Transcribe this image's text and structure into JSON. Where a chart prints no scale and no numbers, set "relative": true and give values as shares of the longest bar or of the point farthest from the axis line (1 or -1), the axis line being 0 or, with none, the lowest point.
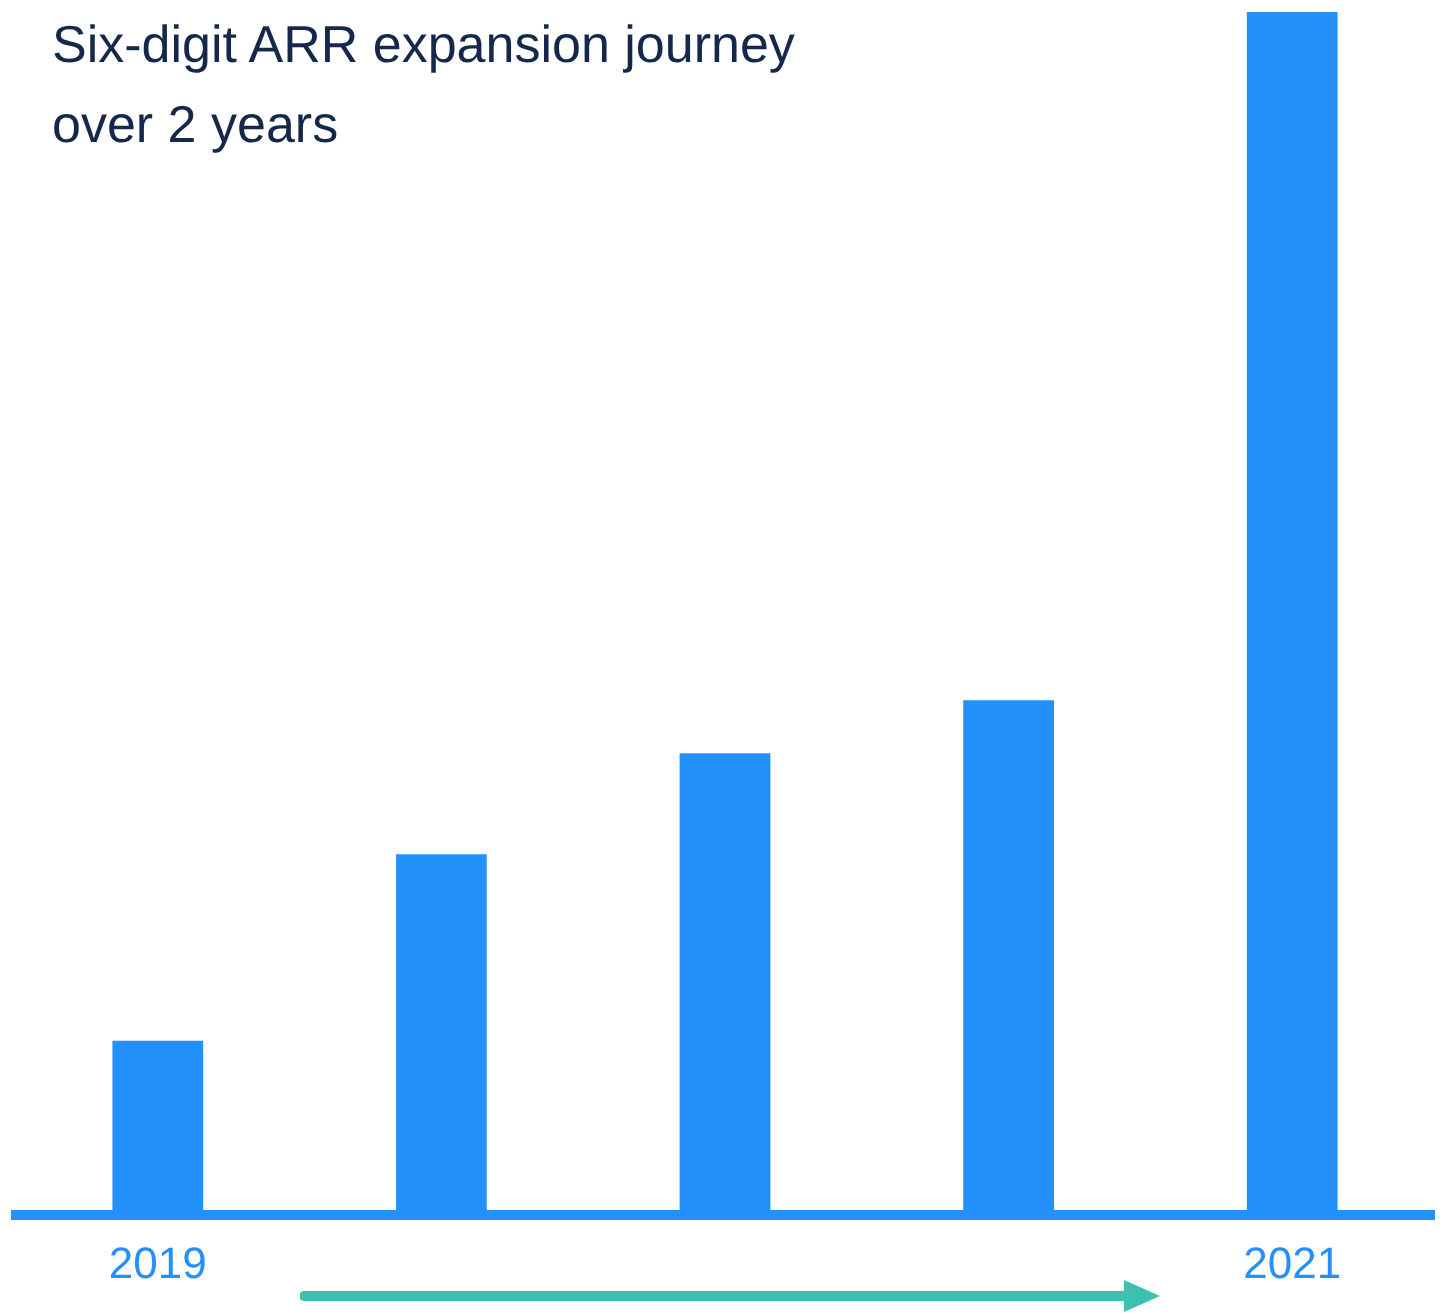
{
  "chart_data": {
    "type": "bar",
    "title": "Six-digit ARR expansion journey over 2 years",
    "categories": [
      "2019",
      null,
      null,
      null,
      "2021"
    ],
    "values": [
      0.145,
      0.3,
      0.384,
      0.428,
      1
    ],
    "color": "#2490fb",
    "relative": true
  }
}
